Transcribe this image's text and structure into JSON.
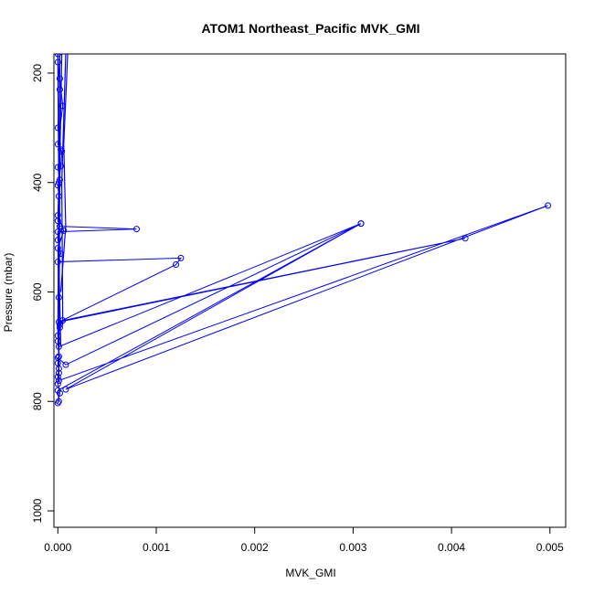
{
  "chart_data": {
    "type": "line",
    "title": "ATOM1 Northeast_Pacific MVK_GMI",
    "xlabel": "MVK_GMI",
    "ylabel": "Pressure (mbar)",
    "xlim": [
      -4e-05,
      0.00516
    ],
    "ylim": [
      1030,
      165
    ],
    "y_inverted": true,
    "grid": false,
    "legend": "none",
    "x_ticks": [
      0,
      0.001,
      0.002,
      0.003,
      0.004,
      0.005
    ],
    "x_tick_labels": [
      "0.000",
      "0.001",
      "0.002",
      "0.003",
      "0.004",
      "0.005"
    ],
    "y_ticks": [
      200,
      400,
      600,
      800,
      1000
    ],
    "y_tick_labels": [
      "200",
      "400",
      "600",
      "800",
      "1000"
    ],
    "color": "#0000ff",
    "series": [
      {
        "marker": "open-circle",
        "line": true,
        "points": [
          [
            0.0,
            165
          ],
          [
            2e-05,
            230
          ],
          [
            0.0,
            300
          ],
          [
            3e-05,
            340
          ],
          [
            0.0,
            372
          ],
          [
            2e-05,
            395
          ],
          [
            0.0,
            405
          ],
          [
            1e-05,
            425
          ],
          [
            0.0,
            470
          ],
          [
            2e-05,
            480
          ],
          [
            0.0008,
            485
          ],
          [
            0.0,
            490
          ],
          [
            0.0,
            505
          ],
          [
            3e-05,
            530
          ],
          [
            0.0,
            545
          ],
          [
            0.00125,
            538
          ],
          [
            0.0012,
            550
          ],
          [
            1e-05,
            655
          ],
          [
            0.00414,
            502
          ],
          [
            5e-05,
            652
          ],
          [
            2e-05,
            665
          ],
          [
            0.0,
            680
          ],
          [
            1e-05,
            700
          ],
          [
            0.00308,
            475
          ],
          [
            8e-05,
            733
          ],
          [
            0.0,
            720
          ],
          [
            1e-05,
            740
          ],
          [
            0.0,
            755
          ],
          [
            1e-05,
            762
          ],
          [
            0.00498,
            442
          ],
          [
            8e-05,
            778
          ],
          [
            0.00308,
            475
          ],
          [
            0.0,
            780
          ],
          [
            1e-05,
            800
          ]
        ]
      },
      {
        "marker": "open-circle",
        "line": true,
        "points": [
          [
            0.0,
            180
          ],
          [
            2e-05,
            210
          ],
          [
            5e-05,
            260
          ],
          [
            0.0,
            330
          ],
          [
            4e-05,
            343
          ],
          [
            3e-05,
            370
          ],
          [
            1e-05,
            400
          ],
          [
            0.0,
            460
          ],
          [
            6e-05,
            488
          ],
          [
            0.0,
            520
          ],
          [
            1e-05,
            610
          ],
          [
            2e-05,
            660
          ],
          [
            0.0,
            690
          ],
          [
            1e-05,
            718
          ],
          [
            0.0,
            730
          ],
          [
            1e-05,
            748
          ],
          [
            0.0,
            768
          ],
          [
            2e-05,
            785
          ],
          [
            0.0,
            803
          ]
        ]
      }
    ],
    "steep_traces": [
      [
        [
          0.0,
          165
        ],
        [
          1e-05,
          420
        ],
        [
          0.0,
          680
        ]
      ],
      [
        [
          2e-05,
          165
        ],
        [
          1e-05,
          540
        ],
        [
          3e-05,
          700
        ]
      ],
      [
        [
          4e-05,
          165
        ],
        [
          2e-05,
          360
        ],
        [
          1e-05,
          760
        ]
      ],
      [
        [
          0.0001,
          165
        ],
        [
          6e-05,
          330
        ],
        [
          8e-05,
          480
        ],
        [
          3e-05,
          600
        ]
      ],
      [
        [
          8e-05,
          165
        ],
        [
          4e-05,
          400
        ],
        [
          5e-05,
          660
        ]
      ]
    ]
  }
}
